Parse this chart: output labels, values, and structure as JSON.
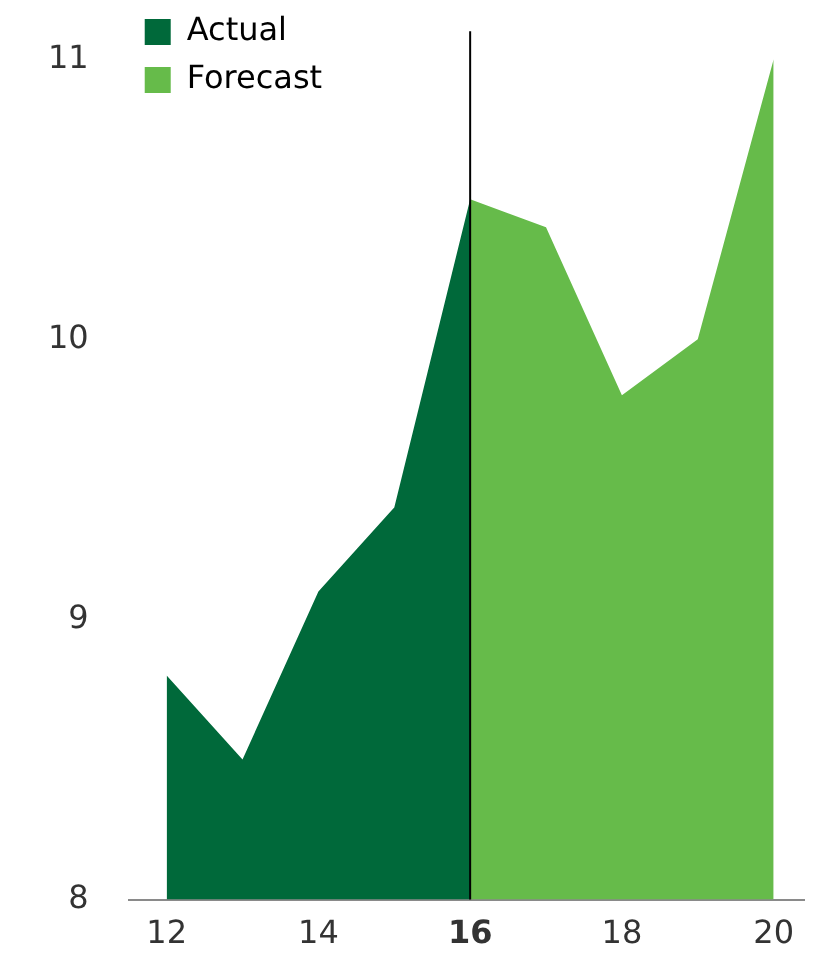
{
  "chart_data": {
    "type": "area",
    "xlim": [
      11.5,
      20.4
    ],
    "xticks": [
      12,
      14,
      16,
      18,
      20
    ],
    "ylim": [
      8,
      11
    ],
    "yticks": [
      8,
      9,
      10,
      11
    ],
    "grid": false,
    "legend": "top left",
    "series": [
      {
        "name": "Actual",
        "color": "#00693a",
        "x": [
          12,
          13,
          14,
          15,
          16
        ],
        "values": [
          8.8,
          8.5,
          9.1,
          9.4,
          10.5
        ]
      },
      {
        "name": "Forecast",
        "color": "#66bb4a",
        "x": [
          16,
          17,
          18,
          19,
          20
        ],
        "values": [
          10.5,
          10.4,
          9.8,
          10.0,
          11.0
        ]
      }
    ],
    "ref_lines": [
      {
        "axis": "x",
        "value": 16,
        "color": "#000000"
      }
    ]
  }
}
